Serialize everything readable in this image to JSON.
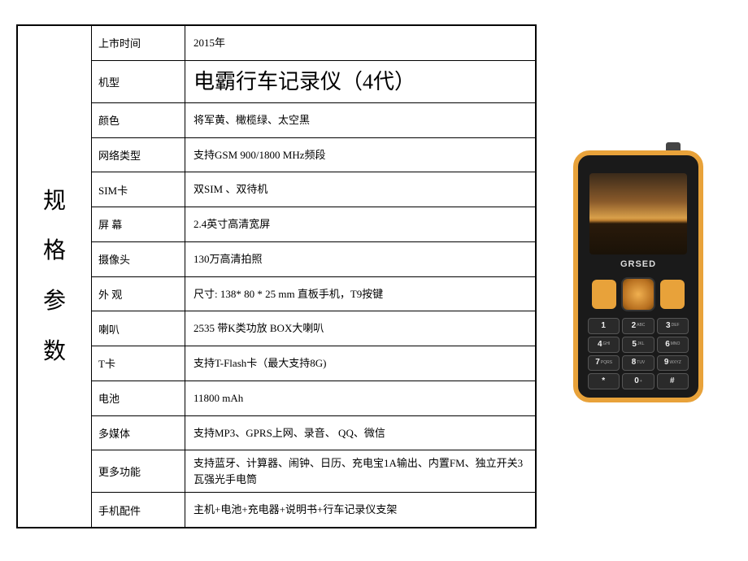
{
  "header": {
    "title_chars": [
      "规",
      "格",
      "参",
      "数"
    ]
  },
  "specs": [
    {
      "label": "上市时间",
      "value": "2015年",
      "big": false
    },
    {
      "label": "机型",
      "value": "电霸行车记录仪（4代）",
      "big": true
    },
    {
      "label": "颜色",
      "value": "将军黄、橄榄绿、太空黑",
      "big": false
    },
    {
      "label": "网络类型",
      "value": "支持GSM 900/1800 MHz频段",
      "big": false
    },
    {
      "label": "SIM卡",
      "value": "双SIM 、双待机",
      "big": false
    },
    {
      "label": "屏 幕",
      "value": "2.4英寸高清宽屏",
      "big": false
    },
    {
      "label": "摄像头",
      "value": "130万高清拍照",
      "big": false
    },
    {
      "label": "外 观",
      "value": "尺寸:  138* 80 * 25 mm 直板手机，T9按键",
      "big": false
    },
    {
      "label": "喇叭",
      "value": "2535 带K类功放 BOX大喇叭",
      "big": false
    },
    {
      "label": "T卡",
      "value": "支持T-Flash卡（最大支持8G)",
      "big": false
    },
    {
      "label": "电池",
      "value": "11800 mAh",
      "big": false
    },
    {
      "label": "多媒体",
      "value": "支持MP3、GPRS上网、录音、 QQ、微信",
      "big": false
    },
    {
      "label": "更多功能",
      "value": "支持蓝牙、计算器、闹钟、日历、充电宝1A输出、内置FM、独立开关3瓦强光手电筒",
      "big": false
    },
    {
      "label": "手机配件",
      "value": "主机+电池+充电器+说明书+行车记录仪支架",
      "big": false
    }
  ],
  "phone": {
    "brand": "GRSED",
    "accent_color": "#e8a23a",
    "body_color": "#1a1a1a",
    "keys": [
      {
        "num": "1",
        "sub": ""
      },
      {
        "num": "2",
        "sub": "ABC"
      },
      {
        "num": "3",
        "sub": "DEF"
      },
      {
        "num": "4",
        "sub": "GHI"
      },
      {
        "num": "5",
        "sub": "JKL"
      },
      {
        "num": "6",
        "sub": "MNO"
      },
      {
        "num": "7",
        "sub": "PQRS"
      },
      {
        "num": "8",
        "sub": "TUV"
      },
      {
        "num": "9",
        "sub": "WXYZ"
      },
      {
        "num": "*",
        "sub": ""
      },
      {
        "num": "0",
        "sub": "+"
      },
      {
        "num": "#",
        "sub": ""
      }
    ]
  }
}
